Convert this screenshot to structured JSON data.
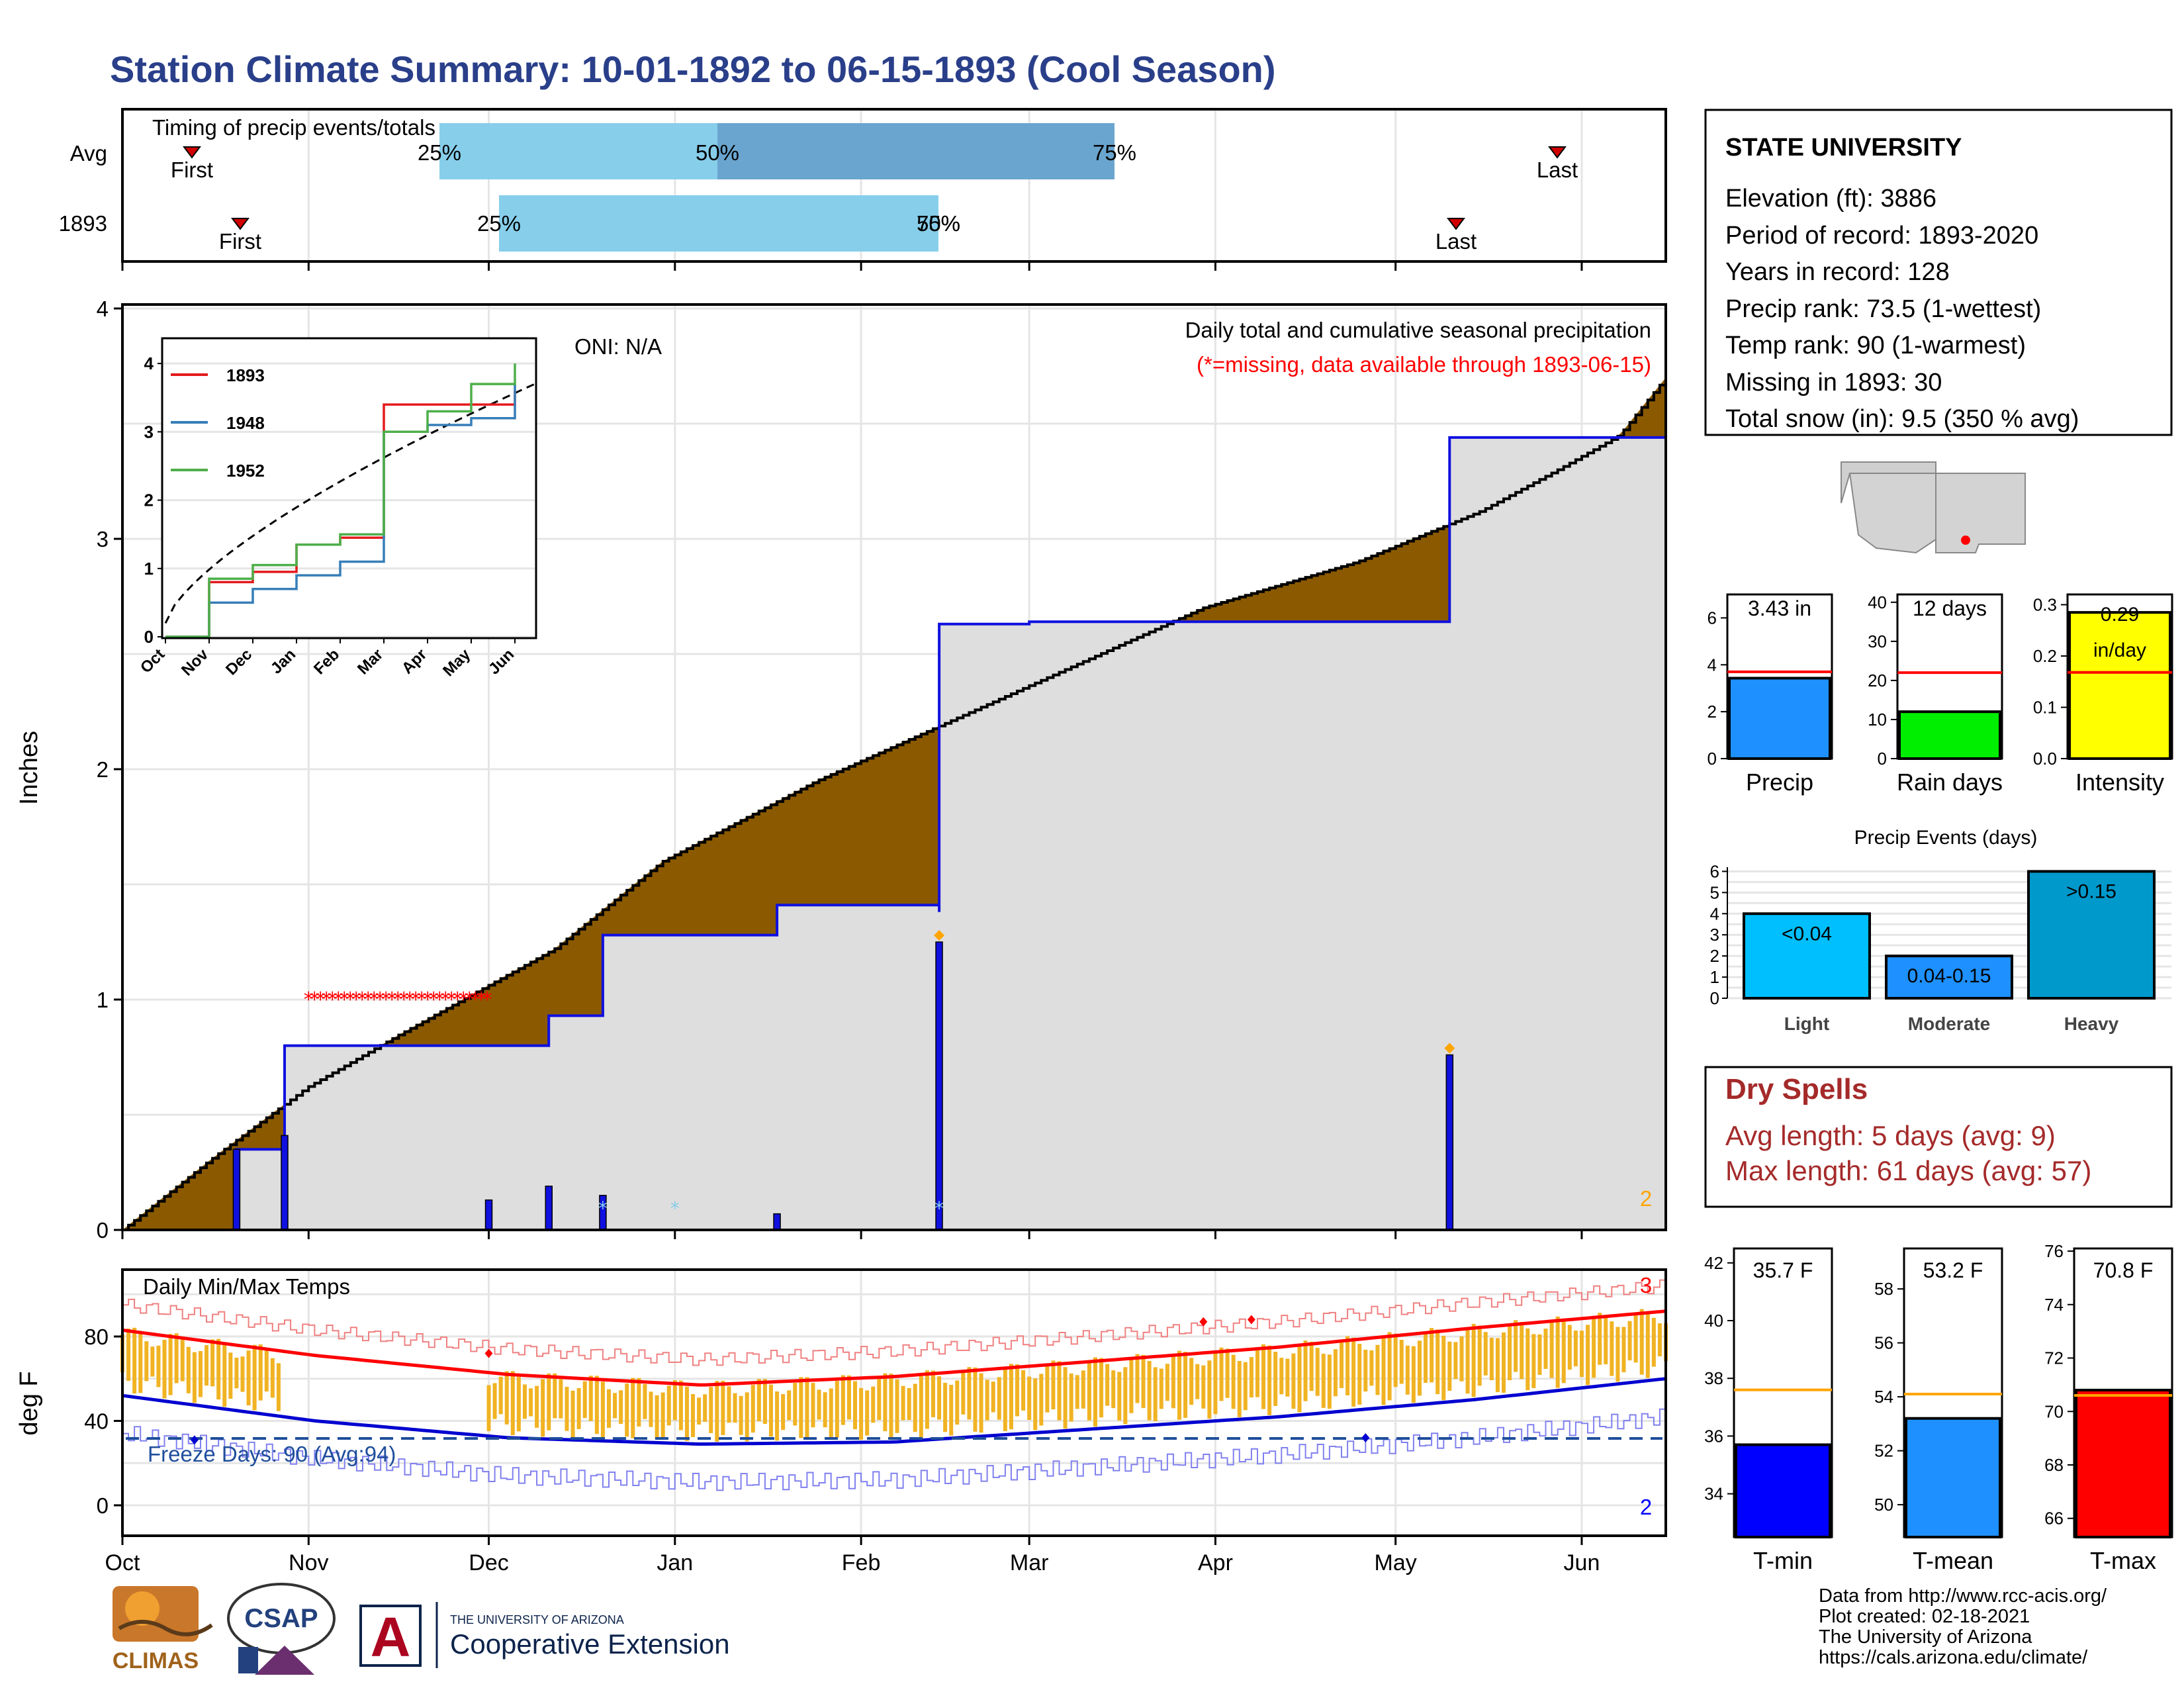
{
  "title": "Station Climate Summary: 10-01-1892 to 06-15-1893 (Cool Season)",
  "timing": {
    "label": "Timing of precip events/totals",
    "rows": [
      {
        "label": "Avg",
        "first": "First",
        "last": "Last",
        "p25": "25%",
        "p50": "50%",
        "p75": "75%"
      },
      {
        "label": "1893",
        "first": "First",
        "last": "Last",
        "p25": "25%",
        "p50": "50%",
        "p75": "75%"
      }
    ]
  },
  "precip_panel": {
    "ylabel": "Inches",
    "oni": "ONI: N/A",
    "heading": "Daily total and cumulative seasonal precipitation",
    "missing_note": "(*=missing, data available through 1893-06-15)",
    "corner_count": "2",
    "yticks": [
      "0",
      "1",
      "2",
      "3",
      "4"
    ]
  },
  "inset": {
    "legend": [
      "1893",
      "1948",
      "1952"
    ],
    "colors": {
      "1893": "#e41a1c",
      "1948": "#377eb8",
      "1952": "#4daf4a"
    },
    "yticks": [
      "0",
      "1",
      "2",
      "3",
      "4"
    ],
    "xticks": [
      "Oct",
      "Nov",
      "Dec",
      "Jan",
      "Feb",
      "Mar",
      "Apr",
      "May",
      "Jun"
    ]
  },
  "temp_panel": {
    "ylabel": "deg F",
    "label": "Daily Min/Max Temps",
    "freeze_days": "Freeze Days: 90 (Avg:94)",
    "corner_top": "3",
    "corner_bottom": "2",
    "yticks": [
      "0",
      "40",
      "80"
    ]
  },
  "months": [
    "Oct",
    "Nov",
    "Dec",
    "Jan",
    "Feb",
    "Mar",
    "Apr",
    "May",
    "Jun"
  ],
  "station": {
    "name": "STATE UNIVERSITY",
    "lines": [
      "Elevation (ft): 3886",
      "Period of record: 1893-2020",
      "Years in record: 128",
      "Precip rank: 73.5 (1-wettest)",
      "Temp rank: 90 (1-warmest)",
      "Missing in 1893: 30",
      "Total snow (in): 9.5 (350 % avg)"
    ]
  },
  "summary_bars": [
    {
      "label": "Precip",
      "value_text": "3.43 in",
      "value": 3.43,
      "avg": 3.7,
      "ymax": 7,
      "ticks": [
        "0",
        "2",
        "4",
        "6"
      ],
      "tickvals": [
        0,
        2,
        4,
        6
      ],
      "color": "#1e90ff"
    },
    {
      "label": "Rain days",
      "value_text": "12 days",
      "value": 12,
      "avg": 22,
      "ymax": 42,
      "ticks": [
        "0",
        "10",
        "20",
        "30",
        "40"
      ],
      "tickvals": [
        0,
        10,
        20,
        30,
        40
      ],
      "color": "#00ee00"
    },
    {
      "label": "Intensity",
      "value_text": "0.29 in/day",
      "value": 0.285,
      "avg": 0.168,
      "ymax": 0.32,
      "ticks": [
        "0.0",
        "0.1",
        "0.2",
        "0.3"
      ],
      "tickvals": [
        0,
        0.1,
        0.2,
        0.3
      ],
      "color": "#ffff00"
    }
  ],
  "precip_events": {
    "title": "Precip Events (days)",
    "yticks": [
      "0",
      "1",
      "2",
      "3",
      "4",
      "5",
      "6"
    ],
    "bars": [
      {
        "label": "Light",
        "bar_text": "<0.04",
        "value": 4,
        "color": "#00bfff"
      },
      {
        "label": "Moderate",
        "bar_text": "0.04-0.15",
        "value": 2,
        "color": "#1e90ff"
      },
      {
        "label": "Heavy",
        "bar_text": ">0.15",
        "value": 6,
        "color": "#0099cc"
      }
    ]
  },
  "dry_spells": {
    "title": "Dry Spells",
    "avg": "Avg length: 5 days (avg: 9)",
    "max": "Max length: 61 days (avg: 57)"
  },
  "temp_bars": [
    {
      "label": "T-min",
      "value_text": "35.7 F",
      "value": 35.7,
      "avg": 37.6,
      "ymin": 32.5,
      "ymax": 42.5,
      "ticks": [
        "34",
        "36",
        "38",
        "40",
        "42"
      ],
      "tickvals": [
        34,
        36,
        38,
        40,
        42
      ],
      "color": "#0000ff"
    },
    {
      "label": "T-mean",
      "value_text": "53.2 F",
      "value": 53.2,
      "avg": 54.1,
      "ymin": 48.8,
      "ymax": 59.5,
      "ticks": [
        "50",
        "52",
        "54",
        "56",
        "58"
      ],
      "tickvals": [
        50,
        52,
        54,
        56,
        58
      ],
      "color": "#1e90ff"
    },
    {
      "label": "T-max",
      "value_text": "70.8 F",
      "value": 70.8,
      "avg": 70.6,
      "ymin": 65.3,
      "ymax": 76.1,
      "ticks": [
        "66",
        "68",
        "70",
        "72",
        "74",
        "76"
      ],
      "tickvals": [
        66,
        68,
        70,
        72,
        74,
        76
      ],
      "color": "#ff0000"
    }
  ],
  "logos": {
    "climas": "CLIMAS",
    "csap": "CSAP",
    "ua_small": "THE UNIVERSITY OF ARIZONA",
    "ua_big": "Cooperative Extension",
    "ua_letter": "A"
  },
  "footer": [
    "Data from http://www.rcc-acis.org/",
    "Plot created: 02-18-2021",
    "The University of Arizona",
    "https://cals.arizona.edu/climate/"
  ],
  "chart_data": [
    {
      "type": "area",
      "title": "Daily total and cumulative seasonal precipitation",
      "ylabel": "Inches",
      "ylim": [
        0,
        4
      ],
      "x_range": [
        "1892-10-01",
        "1893-06-15"
      ],
      "series": [
        {
          "name": "1893",
          "x": [
            "1892-10-01",
            "1892-10-20",
            "1892-10-28",
            "1892-12-01",
            "1892-12-11",
            "1892-12-20",
            "1893-01-18",
            "1893-02-14",
            "1893-02-14",
            "1893-03-01",
            "1893-05-10",
            "1893-06-15"
          ],
          "y": [
            0,
            0.35,
            0.8,
            0.8,
            0.93,
            1.28,
            1.41,
            1.38,
            2.63,
            2.64,
            3.44,
            3.44
          ]
        }
      ],
      "daily_precip": {
        "x": [
          "1892-10-20",
          "1892-10-28",
          "1892-12-01",
          "1892-12-11",
          "1892-12-20",
          "1893-01-18",
          "1893-02-14",
          "1893-05-10"
        ],
        "y": [
          0.35,
          0.41,
          0.13,
          0.19,
          0.15,
          0.07,
          1.25,
          0.76
        ]
      },
      "missing_days": [
        "1892-11-01",
        "1892-12-01"
      ]
    },
    {
      "type": "line",
      "title": "",
      "ylim": [
        0,
        4
      ],
      "categories": [
        "Oct",
        "Nov",
        "Dec",
        "Jan",
        "Feb",
        "Mar",
        "Apr",
        "May",
        "Jun"
      ],
      "series": [
        {
          "name": "1893",
          "values": [
            0,
            0.8,
            0.95,
            1.35,
            1.45,
            3.4,
            3.4,
            3.4,
            3.6
          ]
        },
        {
          "name": "1948",
          "values": [
            0,
            0.5,
            0.7,
            0.9,
            1.1,
            3.0,
            3.1,
            3.2,
            3.7
          ]
        },
        {
          "name": "1952",
          "values": [
            0,
            0.85,
            1.05,
            1.35,
            1.5,
            3.0,
            3.3,
            3.7,
            4.0
          ]
        }
      ]
    },
    {
      "type": "bar",
      "title": "Daily Min/Max Temps",
      "ylabel": "deg F",
      "ylim": [
        -12,
        100
      ],
      "avg_high": {
        "x": [
          "Oct",
          "Nov",
          "Dec",
          "Jan",
          "Feb",
          "Mar",
          "Apr",
          "May",
          "Jun"
        ],
        "y": [
          83,
          71,
          62,
          57,
          61,
          68,
          75,
          84,
          92
        ]
      },
      "avg_low": {
        "x": [
          "Oct",
          "Nov",
          "Dec",
          "Jan",
          "Feb",
          "Mar",
          "Apr",
          "May",
          "Jun"
        ],
        "y": [
          52,
          40,
          32,
          29,
          30,
          36,
          42,
          50,
          60
        ]
      },
      "freeze_line": 33
    }
  ]
}
